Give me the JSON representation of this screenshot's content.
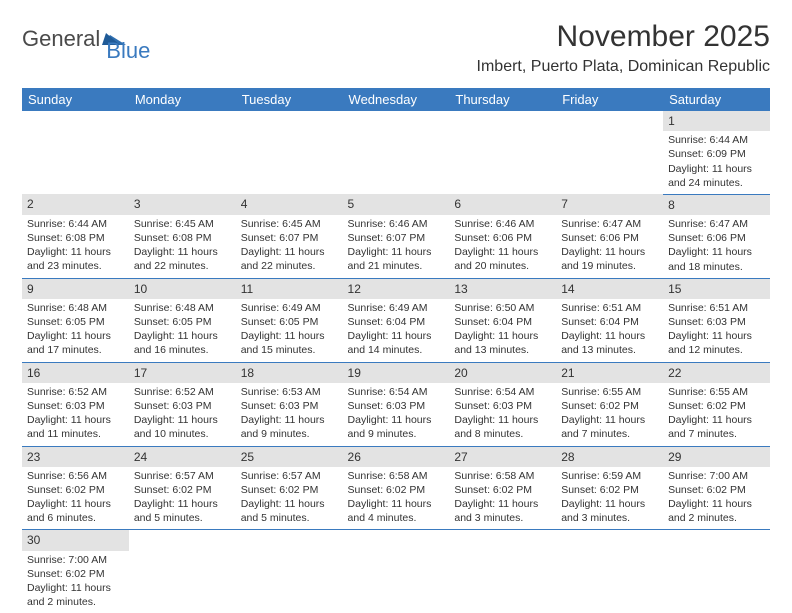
{
  "brand": {
    "general": "General",
    "blue": "Blue"
  },
  "title": "November 2025",
  "location": "Imbert, Puerto Plata, Dominican Republic",
  "colors": {
    "header_bg": "#3a7abf",
    "header_text": "#ffffff",
    "daybar_bg": "#e3e3e3",
    "text": "#333333",
    "row_border": "#3a7abf",
    "page_bg": "#ffffff"
  },
  "typography": {
    "title_fontsize": 30,
    "location_fontsize": 16,
    "weekday_fontsize": 13,
    "daynum_fontsize": 12,
    "body_fontsize": 10.5
  },
  "weekdays": [
    "Sunday",
    "Monday",
    "Tuesday",
    "Wednesday",
    "Thursday",
    "Friday",
    "Saturday"
  ],
  "weeks": [
    [
      null,
      null,
      null,
      null,
      null,
      null,
      {
        "n": "1",
        "sunrise": "6:44 AM",
        "sunset": "6:09 PM",
        "daylight": "11 hours and 24 minutes."
      }
    ],
    [
      {
        "n": "2",
        "sunrise": "6:44 AM",
        "sunset": "6:08 PM",
        "daylight": "11 hours and 23 minutes."
      },
      {
        "n": "3",
        "sunrise": "6:45 AM",
        "sunset": "6:08 PM",
        "daylight": "11 hours and 22 minutes."
      },
      {
        "n": "4",
        "sunrise": "6:45 AM",
        "sunset": "6:07 PM",
        "daylight": "11 hours and 22 minutes."
      },
      {
        "n": "5",
        "sunrise": "6:46 AM",
        "sunset": "6:07 PM",
        "daylight": "11 hours and 21 minutes."
      },
      {
        "n": "6",
        "sunrise": "6:46 AM",
        "sunset": "6:06 PM",
        "daylight": "11 hours and 20 minutes."
      },
      {
        "n": "7",
        "sunrise": "6:47 AM",
        "sunset": "6:06 PM",
        "daylight": "11 hours and 19 minutes."
      },
      {
        "n": "8",
        "sunrise": "6:47 AM",
        "sunset": "6:06 PM",
        "daylight": "11 hours and 18 minutes."
      }
    ],
    [
      {
        "n": "9",
        "sunrise": "6:48 AM",
        "sunset": "6:05 PM",
        "daylight": "11 hours and 17 minutes."
      },
      {
        "n": "10",
        "sunrise": "6:48 AM",
        "sunset": "6:05 PM",
        "daylight": "11 hours and 16 minutes."
      },
      {
        "n": "11",
        "sunrise": "6:49 AM",
        "sunset": "6:05 PM",
        "daylight": "11 hours and 15 minutes."
      },
      {
        "n": "12",
        "sunrise": "6:49 AM",
        "sunset": "6:04 PM",
        "daylight": "11 hours and 14 minutes."
      },
      {
        "n": "13",
        "sunrise": "6:50 AM",
        "sunset": "6:04 PM",
        "daylight": "11 hours and 13 minutes."
      },
      {
        "n": "14",
        "sunrise": "6:51 AM",
        "sunset": "6:04 PM",
        "daylight": "11 hours and 13 minutes."
      },
      {
        "n": "15",
        "sunrise": "6:51 AM",
        "sunset": "6:03 PM",
        "daylight": "11 hours and 12 minutes."
      }
    ],
    [
      {
        "n": "16",
        "sunrise": "6:52 AM",
        "sunset": "6:03 PM",
        "daylight": "11 hours and 11 minutes."
      },
      {
        "n": "17",
        "sunrise": "6:52 AM",
        "sunset": "6:03 PM",
        "daylight": "11 hours and 10 minutes."
      },
      {
        "n": "18",
        "sunrise": "6:53 AM",
        "sunset": "6:03 PM",
        "daylight": "11 hours and 9 minutes."
      },
      {
        "n": "19",
        "sunrise": "6:54 AM",
        "sunset": "6:03 PM",
        "daylight": "11 hours and 9 minutes."
      },
      {
        "n": "20",
        "sunrise": "6:54 AM",
        "sunset": "6:03 PM",
        "daylight": "11 hours and 8 minutes."
      },
      {
        "n": "21",
        "sunrise": "6:55 AM",
        "sunset": "6:02 PM",
        "daylight": "11 hours and 7 minutes."
      },
      {
        "n": "22",
        "sunrise": "6:55 AM",
        "sunset": "6:02 PM",
        "daylight": "11 hours and 7 minutes."
      }
    ],
    [
      {
        "n": "23",
        "sunrise": "6:56 AM",
        "sunset": "6:02 PM",
        "daylight": "11 hours and 6 minutes."
      },
      {
        "n": "24",
        "sunrise": "6:57 AM",
        "sunset": "6:02 PM",
        "daylight": "11 hours and 5 minutes."
      },
      {
        "n": "25",
        "sunrise": "6:57 AM",
        "sunset": "6:02 PM",
        "daylight": "11 hours and 5 minutes."
      },
      {
        "n": "26",
        "sunrise": "6:58 AM",
        "sunset": "6:02 PM",
        "daylight": "11 hours and 4 minutes."
      },
      {
        "n": "27",
        "sunrise": "6:58 AM",
        "sunset": "6:02 PM",
        "daylight": "11 hours and 3 minutes."
      },
      {
        "n": "28",
        "sunrise": "6:59 AM",
        "sunset": "6:02 PM",
        "daylight": "11 hours and 3 minutes."
      },
      {
        "n": "29",
        "sunrise": "7:00 AM",
        "sunset": "6:02 PM",
        "daylight": "11 hours and 2 minutes."
      }
    ],
    [
      {
        "n": "30",
        "sunrise": "7:00 AM",
        "sunset": "6:02 PM",
        "daylight": "11 hours and 2 minutes."
      },
      null,
      null,
      null,
      null,
      null,
      null
    ]
  ],
  "labels": {
    "sunrise": "Sunrise:",
    "sunset": "Sunset:",
    "daylight": "Daylight:"
  }
}
